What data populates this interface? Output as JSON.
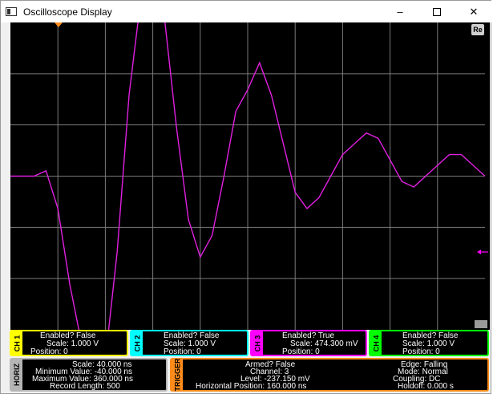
{
  "window": {
    "title": "Oscilloscope Display",
    "minimize": "–",
    "close": "✕"
  },
  "display": {
    "reset_label": "Re",
    "grid": {
      "divisions_x": 10,
      "divisions_y": 6,
      "line_color": "#7a7a7a"
    },
    "trigger_marker_color": "#ff8c1a",
    "level_marker_color": "#ff00ff"
  },
  "trace": {
    "channel": "CH 3",
    "color": "#e020e0",
    "x_unit": "ns",
    "y_unit": "mV",
    "x": [
      -40,
      -30,
      -20,
      -10,
      0,
      10,
      20,
      30,
      40,
      50,
      60,
      70,
      80,
      90,
      100,
      110,
      120,
      130,
      140,
      150,
      160,
      170,
      180,
      190,
      200,
      210,
      220,
      230,
      240,
      250,
      260,
      270,
      280,
      290,
      300,
      310,
      320,
      330,
      340,
      350,
      360
    ],
    "y": [
      0,
      0,
      0,
      50,
      -300,
      -1000,
      -1550,
      -1950,
      -1700,
      -700,
      750,
      1650,
      1850,
      1450,
      450,
      -400,
      -750,
      -550,
      0,
      600,
      800,
      1050,
      750,
      300,
      -150,
      -300,
      -200,
      0,
      200,
      300,
      400,
      350,
      150,
      -50,
      -100,
      0,
      100,
      200,
      200,
      100,
      0
    ]
  },
  "channels": [
    {
      "tab": "CH 1",
      "color": "#ffff00",
      "enabled": "Enabled? False",
      "scale": "Scale: 1.000 V",
      "position": "Position: 0"
    },
    {
      "tab": "CH 2",
      "color": "#00ffff",
      "enabled": "Enabled? False",
      "scale": "Scale: 1.000 V",
      "position": "Position: 0"
    },
    {
      "tab": "CH 3",
      "color": "#ff00ff",
      "enabled": "Enabled? True",
      "scale": "Scale: 474.300 mV",
      "position": "Position: 0"
    },
    {
      "tab": "CH 4",
      "color": "#00ff00",
      "enabled": "Enabled? False",
      "scale": "Scale: 1.000 V",
      "position": "Position: 0"
    }
  ],
  "horiz": {
    "tab": "HORIZ",
    "scale": "Scale: 40.000 ns",
    "min": "Minimum Value: -40.000 ns",
    "max": "Maximum Value: 360.000 ns",
    "record": "Record Length: 500"
  },
  "trigger": {
    "tab": "TRIGGER",
    "armed": "Armed? False",
    "channel": "Channel: 3",
    "level": "Level: -237.150 mV",
    "hpos": "Horizontal Position: 160.000 ns",
    "edge": "Edge: Falling",
    "mode": "Mode: Normal",
    "coupling": "Coupling: DC",
    "holdoff": "Holdoff: 0.000 s"
  }
}
